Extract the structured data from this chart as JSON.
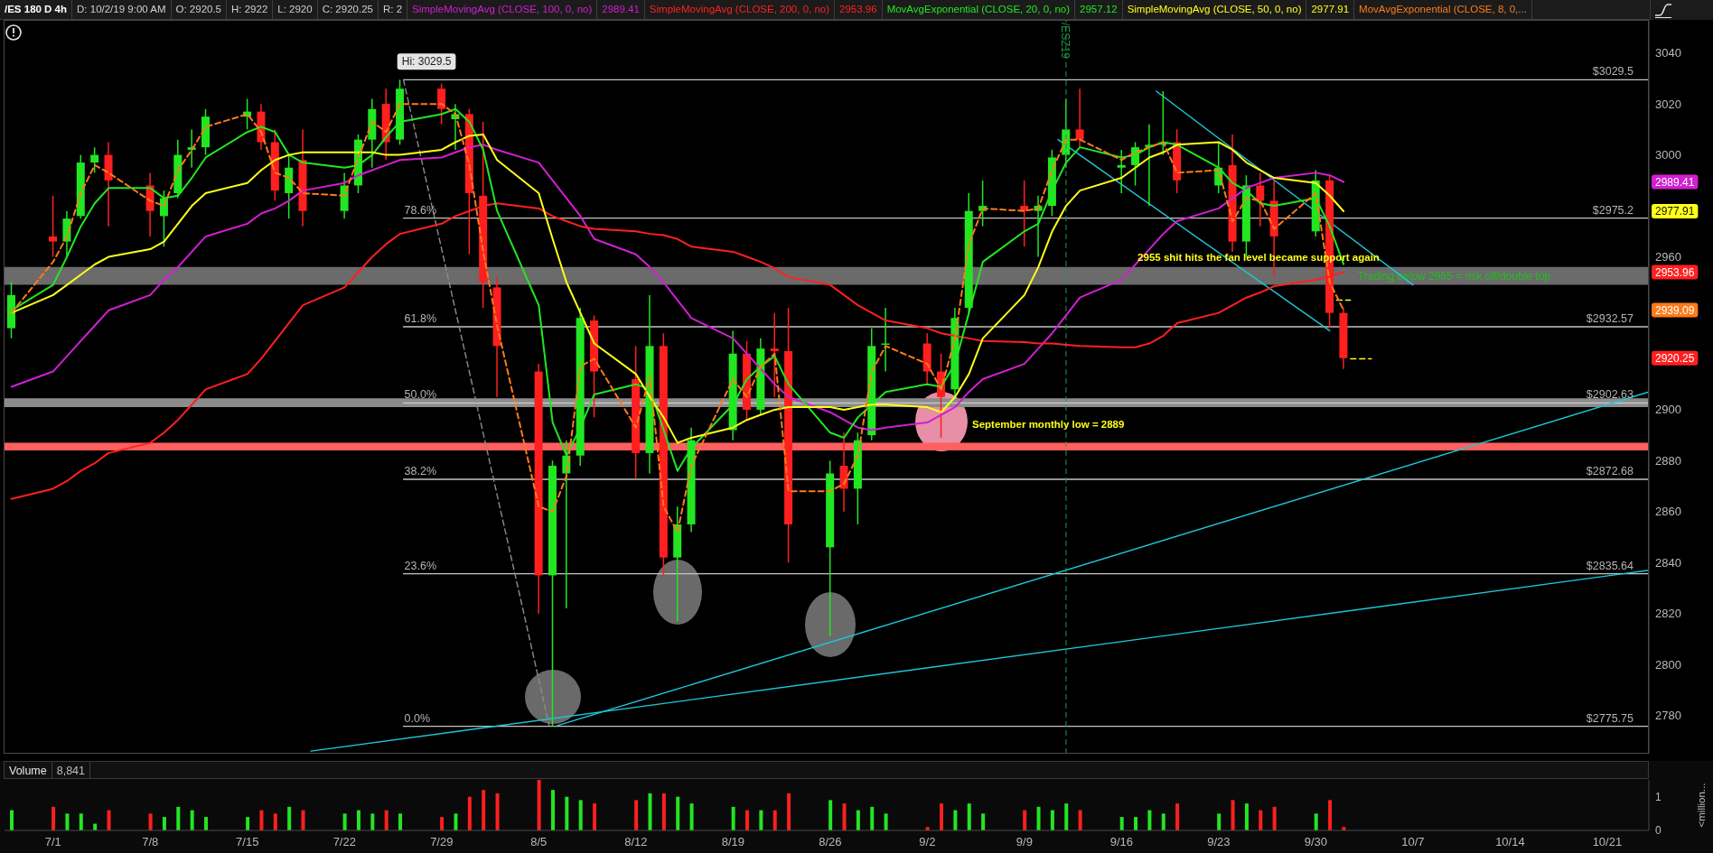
{
  "chart_data": [
    {
      "type": "candlestick",
      "title": "/ES 180 D 4h",
      "annotations": [
        "D: 10/2/19 9:00 AM",
        "O: 2920.5",
        "H: 2922",
        "L: 2920",
        "C: 2920.25",
        "R: 2",
        "2989.41",
        "2953.96",
        "2957.12",
        "2977.91",
        "2955 shit hits the fan level became support again",
        "September monthly low = 2889",
        {
          "text": "Hi: 3029.5",
          "x": "--07-26",
          "y": 3029.5
        },
        {
          "text": "78.6%",
          "x": "--07-26T06:00",
          "y": 2975.2
        },
        {
          "text": "61.8%",
          "x": "--07-26T06:00",
          "y": 2932.57
        },
        {
          "text": "50.0%",
          "x": "--07-26T06:00",
          "y": 2902.63
        },
        {
          "text": "38.2%",
          "x": "--07-26T06:00",
          "y": 2872.68
        },
        {
          "text": "23.6%",
          "x": "--07-26T06:00",
          "y": 2835.64
        },
        {
          "text": "0.0%",
          "x": "--07-26T06:00",
          "y": 2775.75
        }
      ],
      "x": [
        "--06-28",
        "--07-01",
        "--07-02",
        "--07-03",
        "--07-04",
        "--07-05",
        "--07-08",
        "--07-09",
        "--07-10",
        "--07-11",
        "--07-12",
        "--07-15",
        "--07-16",
        "--07-17",
        "--07-18",
        "--07-19",
        "--07-22",
        "--07-23",
        "--07-24",
        "--07-25",
        "--07-26",
        "--07-29",
        "--07-30",
        "--07-31",
        "--08-01",
        "--08-02",
        "--08-05",
        "--08-06",
        "--08-07",
        "--08-08",
        "--08-09",
        "--08-12",
        "--08-13",
        "--08-14",
        "--08-15",
        "--08-16",
        "--08-19",
        "--08-20",
        "--08-21",
        "--08-22",
        "--08-23",
        "--08-26",
        "--08-27",
        "--08-28",
        "--08-29",
        "--08-30",
        "--09-02",
        "--09-03",
        "--09-04",
        "--09-05",
        "--09-06",
        "--09-09",
        "--09-10",
        "--09-11",
        "--09-12",
        "--09-13",
        "--09-16",
        "--09-17",
        "--09-18",
        "--09-19",
        "--09-20",
        "--09-23",
        "--09-24",
        "--09-25",
        "--09-26",
        "--09-27",
        "--09-30",
        "--10-01",
        "--10-02"
      ],
      "ohlc": [
        [
          2932,
          2950,
          2928,
          2945
        ],
        [
          2968,
          2984,
          2960,
          2966
        ],
        [
          2966,
          2978,
          2960,
          2975
        ],
        [
          2976,
          3000,
          2975,
          2997
        ],
        [
          2997,
          3003,
          2993,
          3000
        ],
        [
          3000,
          3005,
          2972,
          2990
        ],
        [
          2988,
          2993,
          2968,
          2978
        ],
        [
          2976,
          2986,
          2964,
          2983
        ],
        [
          2985,
          3006,
          2983,
          3000
        ],
        [
          3002,
          3010,
          2995,
          3003
        ],
        [
          3003,
          3018,
          3000,
          3015
        ],
        [
          3015,
          3022,
          3010,
          3017
        ],
        [
          3017,
          3020,
          3002,
          3005
        ],
        [
          3005,
          3010,
          2982,
          2986
        ],
        [
          2985,
          3000,
          2975,
          2995
        ],
        [
          2998,
          3010,
          2972,
          2978
        ],
        [
          2978,
          2993,
          2975,
          2988
        ],
        [
          2988,
          3008,
          2985,
          3006
        ],
        [
          3006,
          3022,
          2995,
          3018
        ],
        [
          3020,
          3026,
          2998,
          3005
        ],
        [
          3006,
          3029.5,
          3004,
          3026
        ],
        [
          3026,
          3028,
          3012,
          3018
        ],
        [
          3014,
          3020,
          3002,
          3016
        ],
        [
          3016,
          3018,
          2961,
          2985
        ],
        [
          2984,
          3013,
          2940,
          2950
        ],
        [
          2948,
          2952,
          2905,
          2925
        ],
        [
          2915,
          2918,
          2820,
          2835
        ],
        [
          2835,
          2880,
          2775.75,
          2878
        ],
        [
          2875,
          2888,
          2822,
          2882
        ],
        [
          2882,
          2940,
          2878,
          2936
        ],
        [
          2935,
          2937,
          2897,
          2915
        ],
        [
          2912,
          2925,
          2873,
          2883
        ],
        [
          2883,
          2945,
          2875,
          2925
        ],
        [
          2925,
          2930,
          2835,
          2842
        ],
        [
          2842,
          2862,
          2817,
          2855
        ],
        [
          2855,
          2893,
          2852,
          2888
        ],
        [
          2892,
          2931,
          2888,
          2922
        ],
        [
          2922,
          2927,
          2896,
          2900
        ],
        [
          2900,
          2928,
          2898,
          2924
        ],
        [
          2924,
          2938,
          2905,
          2923
        ],
        [
          2923,
          2940,
          2840,
          2855
        ],
        [
          2846,
          2880,
          2811,
          2875
        ],
        [
          2878,
          2891,
          2860,
          2869
        ],
        [
          2869,
          2891,
          2855,
          2888
        ],
        [
          2890,
          2932,
          2888,
          2925
        ],
        [
          2926,
          2940,
          2915,
          2926
        ],
        [
          2926,
          2930,
          2910,
          2915
        ],
        [
          2915,
          2922,
          2889,
          2905
        ],
        [
          2908,
          2940,
          2905,
          2936
        ],
        [
          2940,
          2985,
          2938,
          2978
        ],
        [
          2978,
          2990,
          2972,
          2980
        ],
        [
          2980,
          2990,
          2964,
          2978
        ],
        [
          2978,
          2984,
          2960,
          2980
        ],
        [
          2980,
          3002,
          2976,
          2999
        ],
        [
          3000,
          3022,
          2995,
          3010
        ],
        [
          3010,
          3026,
          3003,
          3006
        ],
        [
          2995,
          3002,
          2985,
          2996
        ],
        [
          2996,
          3005,
          2988,
          3003
        ],
        [
          3003,
          3012,
          2980,
          3004
        ],
        [
          3004,
          3025,
          3000,
          3005
        ],
        [
          3005,
          3010,
          2985,
          2990
        ],
        [
          2988,
          3005,
          2985,
          2995
        ],
        [
          2996,
          3008,
          2962,
          2966
        ],
        [
          2966,
          2992,
          2960,
          2988
        ],
        [
          2988,
          2993,
          2972,
          2982
        ],
        [
          2982,
          2990,
          2952,
          2968
        ],
        [
          2970,
          2994,
          2968,
          2990
        ],
        [
          2990,
          2992,
          2932,
          2938
        ],
        [
          2938,
          2940,
          2916,
          2920.25
        ]
      ],
      "colors": [
        "#22e622",
        "#ff1f1f",
        "#22e622",
        "#22e622",
        "#22e622",
        "#ff1f1f",
        "#ff1f1f",
        "#22e622",
        "#22e622",
        "#22e622",
        "#22e622",
        "#22e622",
        "#ff1f1f",
        "#ff1f1f",
        "#22e622",
        "#ff1f1f",
        "#22e622",
        "#22e622",
        "#22e622",
        "#ff1f1f",
        "#22e622",
        "#ff1f1f",
        "#22e622",
        "#ff1f1f",
        "#ff1f1f",
        "#ff1f1f",
        "#ff1f1f",
        "#22e622",
        "#22e622",
        "#22e622",
        "#ff1f1f",
        "#ff1f1f",
        "#22e622",
        "#ff1f1f",
        "#22e622",
        "#22e622",
        "#22e622",
        "#ff1f1f",
        "#22e622",
        "#ff1f1f",
        "#ff1f1f",
        "#22e622",
        "#ff1f1f",
        "#22e622",
        "#22e622",
        "#22e622",
        "#ff1f1f",
        "#ff1f1f",
        "#22e622",
        "#22e622",
        "#22e622",
        "#ff1f1f",
        "#22e622",
        "#22e622",
        "#22e622",
        "#ff1f1f",
        "#22e622",
        "#22e622",
        "#22e622",
        "#22e622",
        "#ff1f1f",
        "#22e622",
        "#ff1f1f",
        "#22e622",
        "#ff1f1f",
        "#ff1f1f",
        "#22e622",
        "#ff1f1f",
        "#ff1f1f"
      ],
      "series": [
        {
          "type": "line",
          "name": "SimpleMovingAvg (CLOSE, 100, 0, no)",
          "color": "#d21fd2",
          "values": [
            2909,
            2915,
            2921,
            2927,
            2933,
            2939,
            2945,
            2951,
            2956,
            2962,
            2968,
            2973,
            2977,
            2979,
            2982,
            2986,
            2989,
            2992,
            2994,
            2996,
            2998,
            2999,
            3001,
            3003,
            3004,
            3002,
            2997,
            2990,
            2983,
            2976,
            2967,
            2961,
            2956,
            2950,
            2943,
            2936,
            2928,
            2922,
            2916,
            2910,
            2905,
            2899,
            2896,
            2893,
            2892,
            2893,
            2895,
            2898,
            2901,
            2907,
            2912,
            2918,
            2924,
            2930,
            2937,
            2944,
            2951,
            2957,
            2963,
            2969,
            2974,
            2979,
            2983,
            2987,
            2989,
            2991,
            2993,
            2992,
            2989.41
          ]
        },
        {
          "type": "line",
          "name": "SimpleMovingAvg (CLOSE, 200, 0, no)",
          "color": "#ff2020",
          "values": [
            2865,
            2869,
            2872,
            2876,
            2879,
            2883,
            2887,
            2891,
            2896,
            2902,
            2908,
            2914,
            2920,
            2927,
            2934,
            2941,
            2948,
            2954,
            2960,
            2965,
            2969,
            2973,
            2976,
            2978,
            2980,
            2981,
            2979,
            2976,
            2974,
            2972,
            2971,
            2970,
            2969,
            2968.5,
            2967,
            2964,
            2962,
            2960,
            2958,
            2955.5,
            2952,
            2949,
            2945,
            2941,
            2938,
            2935,
            2932,
            2930,
            2929,
            2928,
            2927,
            2926.5,
            2926,
            2926,
            2925.5,
            2925,
            2924.5,
            2924.5,
            2926,
            2929,
            2934,
            2938,
            2941,
            2944,
            2946,
            2948.5,
            2951,
            2952.5,
            2953.96
          ]
        },
        {
          "type": "line",
          "name": "MovAvgExponential (CLOSE, 20, 0, no)",
          "color": "#22e622",
          "values": [
            2939,
            2949,
            2960,
            2972,
            2981,
            2987,
            2987,
            2983,
            2984,
            2991,
            2999,
            3009,
            3011,
            3009,
            3000,
            2997,
            2995,
            2996,
            3000,
            3007,
            3013,
            3016,
            3018,
            3013,
            3002,
            2978,
            2941,
            2895,
            2882,
            2893,
            2906,
            2910,
            2908,
            2892,
            2876,
            2885,
            2902,
            2912,
            2917,
            2921,
            2910,
            2891,
            2889,
            2897,
            2902,
            2907,
            2910,
            2909,
            2918,
            2938,
            2958,
            2970,
            2973,
            2986,
            2997,
            3003,
            2999,
            3000,
            3003,
            3005,
            3004,
            2995,
            2989,
            2986,
            2981,
            2980,
            2983,
            2972,
            2957.12
          ]
        },
        {
          "type": "line",
          "name": "SimpleMovingAvg (CLOSE, 50, 0, no)",
          "color": "#ffff1a",
          "values": [
            2938,
            2945,
            2949,
            2953,
            2957,
            2960,
            2963,
            2966,
            2973,
            2980,
            2985,
            2989,
            2994,
            2998,
            3000,
            3001,
            3001,
            3001,
            3001,
            3000,
            3000,
            3002,
            3005,
            3007.5,
            3008,
            2998,
            2985,
            2967,
            2950,
            2938,
            2926,
            2914,
            2905,
            2897,
            2887,
            2889,
            2893,
            2896,
            2898,
            2900,
            2901,
            2901,
            2900,
            2901,
            2902,
            2902,
            2901,
            2899,
            2905,
            2914,
            2928,
            2945,
            2956,
            2970,
            2980,
            2986,
            2991,
            2995,
            2999,
            3001,
            3004,
            3005,
            3002,
            2997,
            2994,
            2991,
            2989,
            2984,
            2977.91
          ]
        },
        {
          "type": "line",
          "name": "MovAvgExponential (CLOSE, 8, 0,...",
          "color": "#ff7a1a",
          "line_style": "dashed",
          "values": [
            2938,
            2958,
            2968,
            2985,
            2996,
            2993,
            2982,
            2980,
            2994,
            3002,
            3011,
            3016,
            3009,
            2993,
            2991,
            2985,
            2984,
            2999,
            3013,
            3009,
            3020,
            3020,
            3016,
            2996,
            2962,
            2933,
            2862,
            2860,
            2874,
            2917,
            2920,
            2893,
            2913,
            2862,
            2852,
            2878,
            2912,
            2905,
            2917,
            2922,
            2868,
            2868,
            2871,
            2882,
            2915,
            2925,
            2918,
            2908,
            2928,
            2965,
            2979,
            2978,
            2979,
            2994,
            3006,
            3006,
            2998,
            3001,
            3003,
            3005,
            2993,
            2994,
            2974,
            2983,
            2982,
            2971,
            2985,
            2950,
            2939.09
          ]
        },
        {
          "type": "line",
          "color": "#c4c4c4",
          "x": [
            "--07-26T06:00",
            "--10-24"
          ],
          "values": [
            3029.5,
            3029.5
          ],
          "value_labels": [
            null,
            "$3029.5"
          ]
        },
        {
          "type": "line",
          "color": "#c4c4c4",
          "x": [
            "--07-26T06:00",
            "--10-24"
          ],
          "values": [
            2975.2,
            2975.2
          ],
          "value_labels": [
            null,
            "$2975.2"
          ]
        },
        {
          "type": "line",
          "color": "#c4c4c4",
          "x": [
            "--07-26T06:00",
            "--10-24"
          ],
          "values": [
            2932.57,
            2932.57
          ],
          "value_labels": [
            null,
            "$2932.57"
          ]
        },
        {
          "type": "line",
          "color": "#c4c4c4",
          "x": [
            "--07-26T06:00",
            "--10-24"
          ],
          "values": [
            2902.63,
            2902.63
          ],
          "value_labels": [
            null,
            "$2902.63"
          ]
        },
        {
          "type": "line",
          "color": "#c4c4c4",
          "x": [
            "--07-26T06:00",
            "--10-24"
          ],
          "values": [
            2872.68,
            2872.68
          ],
          "value_labels": [
            null,
            "$2872.68"
          ]
        },
        {
          "type": "line",
          "color": "#c4c4c4",
          "x": [
            "--07-26T06:00",
            "--10-24"
          ],
          "values": [
            2835.64,
            2835.64
          ],
          "value_labels": [
            null,
            "$2835.64"
          ]
        },
        {
          "type": "line",
          "color": "#c4c4c4",
          "x": [
            "--07-26T06:00",
            "--10-24"
          ],
          "values": [
            2775.75,
            2775.75
          ],
          "value_labels": [
            null,
            "$2775.75"
          ]
        },
        {
          "type": "line",
          "color": "#8c8c8c",
          "line_style": "dashed",
          "x": [
            "--07-26T06:00",
            "--08-05T18:00"
          ],
          "values": [
            3029.5,
            2776
          ]
        },
        {
          "type": "line",
          "color": "#1fc8d8",
          "x": [
            "--08-06T08:00",
            "--10-24"
          ],
          "values": [
            2776,
            2907
          ]
        },
        {
          "type": "line",
          "color": "#1fc8d8",
          "x": [
            "--07-19T14:00",
            "--10-24"
          ],
          "values": [
            2766,
            2837
          ]
        },
        {
          "type": "line",
          "color": "#1fc8d8",
          "x": [
            "--09-18T12:00",
            "--10-07"
          ],
          "values": [
            3025,
            2949
          ]
        },
        {
          "type": "line",
          "color": "#1fc8d8",
          "x": [
            "--09-11T10:00",
            "--10-01"
          ],
          "values": [
            3006,
            2931
          ]
        },
        {
          "type": "line",
          "color": "#ffff1a",
          "line_style": "dashed",
          "x": [
            "--10-01T12:00",
            "--10-02T12:00"
          ],
          "values": [
            2943,
            2943
          ]
        },
        {
          "type": "line",
          "color": "#ffff1a",
          "line_style": "dashed",
          "x": [
            "--10-02T12:00",
            "--10-04"
          ],
          "values": [
            2920,
            2920
          ]
        }
      ],
      "xlim": [
        "--06-27T12:00",
        "--10-24"
      ],
      "ylim": [
        2765,
        3053
      ],
      "yticks": [
        2780,
        2800,
        2820,
        2840,
        2860,
        2880,
        2900,
        2920.25,
        2939.09,
        2953.96,
        2960,
        2977.91,
        2989.41,
        3000,
        3020,
        3040
      ],
      "bands": [
        {
          "axis": "y",
          "from": 2949,
          "to": 2956,
          "color": "#6b6b6b",
          "label": "Trading below 2955 = risk off/double top"
        },
        {
          "axis": "y",
          "from": 2901,
          "to": 2904.5,
          "color": "#8c8c8c"
        },
        {
          "axis": "y",
          "from": 2884,
          "to": 2887,
          "color": "#ff5f5f"
        }
      ],
      "ref_lines": [
        {
          "axis": "x",
          "value": "--09-12",
          "label": "/ESZ19",
          "color": "#1f9a4a",
          "line_style": "dashed"
        }
      ],
      "legend": "top",
      "tick_labels": "y"
    },
    {
      "type": "bar",
      "title": "Volume",
      "annotations": [
        "8,841"
      ],
      "x": [
        "--06-28",
        "--07-01",
        "--07-02",
        "--07-03",
        "--07-04",
        "--07-05",
        "--07-08",
        "--07-09",
        "--07-10",
        "--07-11",
        "--07-12",
        "--07-15",
        "--07-16",
        "--07-17",
        "--07-18",
        "--07-19",
        "--07-22",
        "--07-23",
        "--07-24",
        "--07-25",
        "--07-26",
        "--07-29",
        "--07-30",
        "--07-31",
        "--08-01",
        "--08-02",
        "--08-05",
        "--08-06",
        "--08-07",
        "--08-08",
        "--08-09",
        "--08-12",
        "--08-13",
        "--08-14",
        "--08-15",
        "--08-16",
        "--08-19",
        "--08-20",
        "--08-21",
        "--08-22",
        "--08-23",
        "--08-26",
        "--08-27",
        "--08-28",
        "--08-29",
        "--08-30",
        "--09-02",
        "--09-03",
        "--09-04",
        "--09-05",
        "--09-06",
        "--09-09",
        "--09-10",
        "--09-11",
        "--09-12",
        "--09-13",
        "--09-16",
        "--09-17",
        "--09-18",
        "--09-19",
        "--09-20",
        "--09-23",
        "--09-24",
        "--09-25",
        "--09-26",
        "--09-27",
        "--09-30",
        "--10-01",
        "--10-02"
      ],
      "values": [
        0.6,
        0.7,
        0.5,
        0.5,
        0.2,
        0.6,
        0.5,
        0.4,
        0.7,
        0.6,
        0.4,
        0.4,
        0.6,
        0.5,
        0.7,
        0.6,
        0.5,
        0.6,
        0.5,
        0.6,
        0.5,
        0.4,
        0.5,
        1.0,
        1.2,
        1.1,
        1.5,
        1.2,
        1.0,
        0.9,
        0.8,
        0.9,
        1.1,
        1.1,
        1.0,
        0.8,
        0.7,
        0.6,
        0.6,
        0.6,
        1.1,
        0.9,
        0.8,
        0.6,
        0.7,
        0.5,
        0.1,
        0.8,
        0.6,
        0.8,
        0.5,
        0.6,
        0.7,
        0.6,
        0.8,
        0.6,
        0.4,
        0.4,
        0.6,
        0.5,
        0.8,
        0.5,
        0.9,
        0.8,
        0.6,
        0.7,
        0.5,
        0.9,
        0.1
      ],
      "colors": [
        "#22e622",
        "#ff1f1f",
        "#22e622",
        "#22e622",
        "#22e622",
        "#ff1f1f",
        "#ff1f1f",
        "#22e622",
        "#22e622",
        "#22e622",
        "#22e622",
        "#22e622",
        "#ff1f1f",
        "#ff1f1f",
        "#22e622",
        "#ff1f1f",
        "#22e622",
        "#22e622",
        "#22e622",
        "#ff1f1f",
        "#22e622",
        "#ff1f1f",
        "#22e622",
        "#ff1f1f",
        "#ff1f1f",
        "#ff1f1f",
        "#ff1f1f",
        "#22e622",
        "#22e622",
        "#22e622",
        "#ff1f1f",
        "#ff1f1f",
        "#22e622",
        "#ff1f1f",
        "#22e622",
        "#22e622",
        "#22e622",
        "#ff1f1f",
        "#22e622",
        "#ff1f1f",
        "#ff1f1f",
        "#22e622",
        "#ff1f1f",
        "#22e622",
        "#22e622",
        "#22e622",
        "#ff1f1f",
        "#ff1f1f",
        "#22e622",
        "#22e622",
        "#22e622",
        "#ff1f1f",
        "#22e622",
        "#22e622",
        "#22e622",
        "#ff1f1f",
        "#22e622",
        "#22e622",
        "#22e622",
        "#22e622",
        "#ff1f1f",
        "#22e622",
        "#ff1f1f",
        "#22e622",
        "#ff1f1f",
        "#ff1f1f",
        "#22e622",
        "#ff1f1f",
        "#ff1f1f"
      ],
      "xlim": [
        "--06-27T12:00",
        "--10-24"
      ],
      "xticks": [
        {
          "value": "--07-01",
          "label": "7/1"
        },
        {
          "value": "--07-08",
          "label": "7/8"
        },
        {
          "value": "--07-15",
          "label": "7/15"
        },
        {
          "value": "--07-22",
          "label": "7/22"
        },
        {
          "value": "--07-29",
          "label": "7/29"
        },
        {
          "value": "--08-05",
          "label": "8/5"
        },
        {
          "value": "--08-12",
          "label": "8/12"
        },
        {
          "value": "--08-19",
          "label": "8/19"
        },
        {
          "value": "--08-26",
          "label": "8/26"
        },
        {
          "value": "--09-02",
          "label": "9/2"
        },
        {
          "value": "--09-09",
          "label": "9/9"
        },
        {
          "value": "--09-16",
          "label": "9/16"
        },
        {
          "value": "--09-23",
          "label": "9/23"
        },
        {
          "value": "--09-30",
          "label": "9/30"
        },
        {
          "value": "--10-07",
          "label": "10/7"
        },
        {
          "value": "--10-14",
          "label": "10/14"
        },
        {
          "value": "--10-21",
          "label": "10/21"
        }
      ],
      "ylim": [
        0,
        1.5
      ],
      "yticks": [
        0,
        1
      ],
      "ylabel": "<million..."
    }
  ]
}
